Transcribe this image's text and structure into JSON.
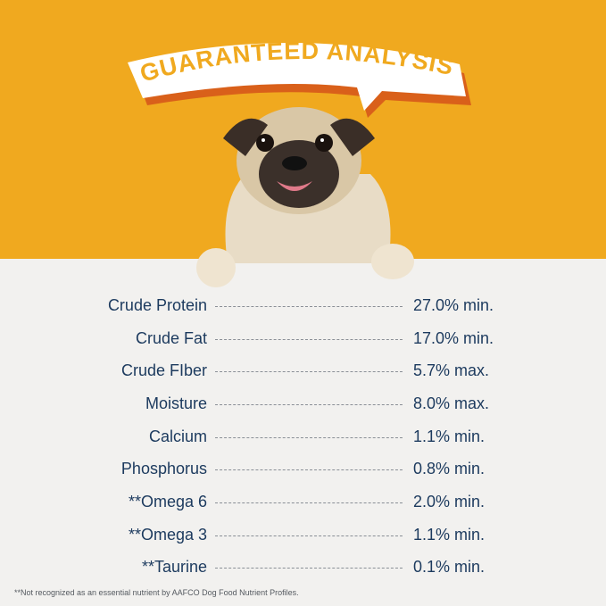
{
  "title": "GUARANTEED ANALYSIS",
  "colors": {
    "background": "#f0a91f",
    "banner": "#ffffff",
    "banner_shadow": "#d9601a",
    "title_text": "#f0a91f",
    "text": "#1c3a5e"
  },
  "rows": [
    {
      "label": "Crude Protein",
      "value": "27.0% min."
    },
    {
      "label": "Crude Fat",
      "value": "17.0% min."
    },
    {
      "label": "Crude FIber",
      "value": "5.7% max."
    },
    {
      "label": "Moisture",
      "value": "8.0% max."
    },
    {
      "label": "Calcium",
      "value": "1.1% min."
    },
    {
      "label": "Phosphorus",
      "value": "0.8% min."
    },
    {
      "label": "**Omega 6",
      "value": "2.0% min."
    },
    {
      "label": "**Omega 3",
      "value": "1.1% min."
    },
    {
      "label": "**Taurine",
      "value": "0.1% min."
    }
  ],
  "footnote": "**Not recognized as an essential nutrient by AAFCO Dog Food Nutrient Profiles."
}
